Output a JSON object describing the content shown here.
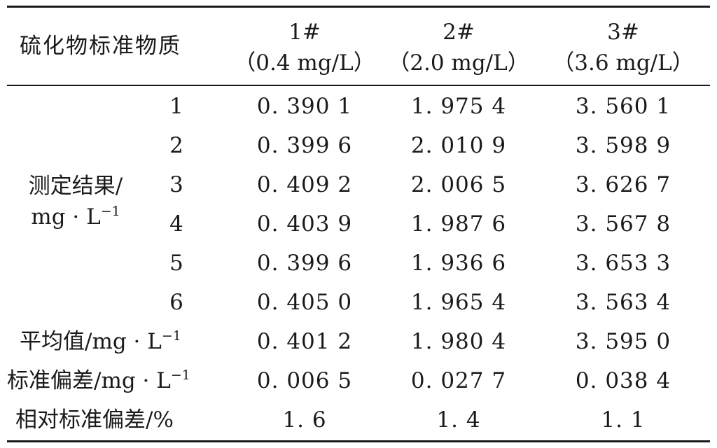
{
  "table": {
    "corner_header": "硫化物标准物质",
    "columns": [
      {
        "id": "1#",
        "conc": "（0.4 mg/L）"
      },
      {
        "id": "2#",
        "conc": "（2.0 mg/L）"
      },
      {
        "id": "3#",
        "conc": "（3.6 mg/L）"
      }
    ],
    "measure_group": {
      "label_line1": "测定结果/",
      "label_line2_base": "mg · L",
      "label_line2_sup": "−1",
      "rows": [
        {
          "n": "1",
          "values": [
            "0. 390 1",
            "1. 975 4",
            "3. 560 1"
          ]
        },
        {
          "n": "2",
          "values": [
            "0. 399 6",
            "2. 010 9",
            "3. 598 9"
          ]
        },
        {
          "n": "3",
          "values": [
            "0. 409 2",
            "2. 006 5",
            "3. 626 7"
          ]
        },
        {
          "n": "4",
          "values": [
            "0. 403 9",
            "1. 987 6",
            "3. 567 8"
          ]
        },
        {
          "n": "5",
          "values": [
            "0. 399 6",
            "1. 936 6",
            "3. 653 3"
          ]
        },
        {
          "n": "6",
          "values": [
            "0. 405 0",
            "1. 965 4",
            "3. 563 4"
          ]
        }
      ]
    },
    "summary_rows": [
      {
        "label_base": "平均值/mg · L",
        "label_sup": "−1",
        "values": [
          "0. 401 2",
          "1. 980 4",
          "3. 595 0"
        ]
      },
      {
        "label_base": "标准偏差/mg · L",
        "label_sup": "−1",
        "values": [
          "0. 006 5",
          "0. 027 7",
          "0. 038 4"
        ]
      },
      {
        "label_base": "相对标准偏差/%",
        "label_sup": "",
        "values": [
          "1. 6",
          "1. 4",
          "1. 1"
        ]
      }
    ]
  }
}
